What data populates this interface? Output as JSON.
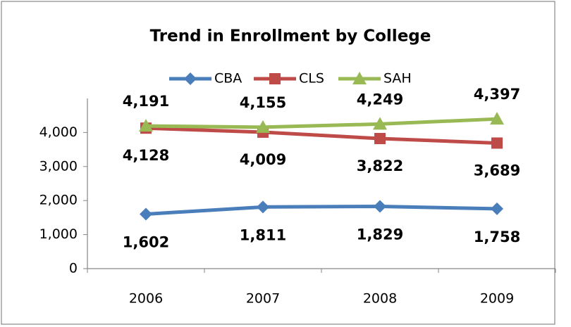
{
  "chart_data": {
    "type": "line",
    "title": "Trend in Enrollment by College",
    "categories": [
      "2006",
      "2007",
      "2008",
      "2009"
    ],
    "series": [
      {
        "name": "CBA",
        "color": "#4a7ebb",
        "marker": "diamond",
        "values": [
          1602,
          1811,
          1829,
          1758
        ],
        "value_labels": [
          "1,602",
          "1,811",
          "1,829",
          "1,758"
        ]
      },
      {
        "name": "CLS",
        "color": "#be4b48",
        "marker": "square",
        "values": [
          4128,
          4009,
          3822,
          3689
        ],
        "value_labels": [
          "4,128",
          "4,009",
          "3,822",
          "3,689"
        ]
      },
      {
        "name": "SAH",
        "color": "#98b954",
        "marker": "triangle",
        "values": [
          4191,
          4155,
          4249,
          4397
        ],
        "value_labels": [
          "4,191",
          "4,155",
          "4,249",
          "4,397"
        ]
      }
    ],
    "ylim": [
      0,
      5000
    ],
    "yticks": [
      {
        "value": 0,
        "label": "0"
      },
      {
        "value": 1000,
        "label": "1,000"
      },
      {
        "value": 2000,
        "label": "2,000"
      },
      {
        "value": 3000,
        "label": "3,000"
      },
      {
        "value": 4000,
        "label": "4,000"
      }
    ],
    "grid": false,
    "legend": "top"
  }
}
